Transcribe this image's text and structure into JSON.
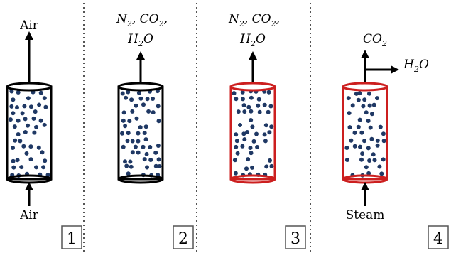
{
  "panels": [
    {
      "number": "1",
      "top_label": [
        "Air"
      ],
      "bottom_label": "Air",
      "color": "#000000",
      "top_outlet": "single"
    },
    {
      "number": "2",
      "top_label_line1": [
        "N",
        "2",
        ", ",
        "CO",
        "2",
        ","
      ],
      "top_label_line2": [
        "H",
        "2",
        "O"
      ],
      "bottom_label": "",
      "color": "#000000",
      "top_outlet": "single"
    },
    {
      "number": "3",
      "top_label_line1": [
        "N",
        "2",
        ", ",
        "CO",
        "2",
        ","
      ],
      "top_label_line2": [
        "H",
        "2",
        "O"
      ],
      "bottom_label": "",
      "color": "#cc1f1f",
      "top_outlet": "single"
    },
    {
      "number": "4",
      "top_label": [
        "CO",
        "2"
      ],
      "side_label": [
        "H",
        "2",
        "O"
      ],
      "bottom_label": "Steam",
      "color": "#cc1f1f",
      "top_outlet": "split"
    }
  ],
  "colors": {
    "particle": "#1f3864",
    "divider": "#555555",
    "black_cylinder": "#000000",
    "red_cylinder": "#cc1f1f"
  }
}
